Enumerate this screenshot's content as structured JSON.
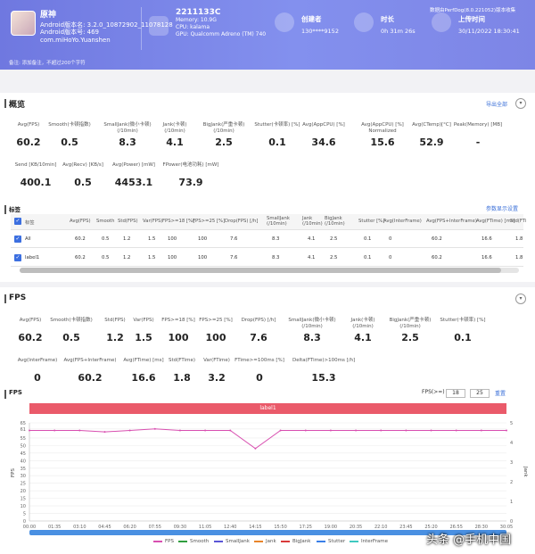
{
  "header": {
    "app_name": "原神",
    "android_version": "Android版本名: 3.2.0_10872902_11078128",
    "android_code": "Android版本号: 469",
    "package": "com.miHoYo.Yuanshen",
    "device_name": "2211133C",
    "memory": "Memory: 10.9G",
    "cpu": "CPU: kalama",
    "gpu": "GPU: Qualcomm Adreno (TM) 740",
    "creator_label": "创建者",
    "creator_value": "130****9152",
    "duration_label": "时长",
    "duration_value": "0h 31m 26s",
    "upload_label": "上传时间",
    "upload_value": "30/11/2022 18:30:41",
    "version_note": "数据由PerfDog(8.0.221052)版本收集",
    "notes": "备注: 添加备注，不超过200个字符"
  },
  "overview": {
    "title": "概览",
    "export": "导出全部",
    "metrics_row1": [
      {
        "label": "Avg(FPS)",
        "value": "60.2"
      },
      {
        "label": "Smooth(卡顿指数)",
        "value": "0.5"
      },
      {
        "label": "SmallJank(微小卡顿)\n(/10min)",
        "value": "8.3"
      },
      {
        "label": "Jank(卡顿)\n(/10min)",
        "value": "4.1"
      },
      {
        "label": "BigJank(严重卡顿)\n(/10min)",
        "value": "2.5"
      },
      {
        "label": "Stutter(卡顿率) [%]",
        "value": "0.1"
      },
      {
        "label": "Avg(AppCPU) [%]",
        "value": "34.6"
      },
      {
        "label": "Avg(AppCPU) [%]\nNormalized",
        "value": "15.6"
      },
      {
        "label": "Avg(CTemp)[°C]",
        "value": "52.9"
      },
      {
        "label": "Peak(Memory) [MB]",
        "value": "-"
      }
    ],
    "metrics_row2": [
      {
        "label": "Send [KB/10min]",
        "value": "400.1"
      },
      {
        "label": "Avg(Recv) [KB/s]",
        "value": "0.5"
      },
      {
        "label": "Avg(Power) [mW]",
        "value": "4453.1"
      },
      {
        "label": "FPower(电池功耗) [mW]",
        "value": "73.9"
      }
    ]
  },
  "labels_table": {
    "title": "标签",
    "settings": "参数显示设置",
    "headers": [
      "标签",
      "Avg(FPS)",
      "Smooth",
      "Std(FPS)",
      "Var(FPS)",
      "FPS>=18 [%]",
      "FPS>=25 [%]",
      "Drop(FPS) [/h]",
      "SmallJank\n(/10min)",
      "Jank\n(/10min)",
      "BigJank\n(/10min)",
      "Stutter [%]",
      "Avg(InterFrame)",
      "Avg(FPS+InterFrame)",
      "Avg(FTime) [ms]",
      "Std(FTi"
    ],
    "rows": [
      [
        "All",
        "60.2",
        "0.5",
        "1.2",
        "1.5",
        "100",
        "100",
        "7.6",
        "8.3",
        "4.1",
        "2.5",
        "0.1",
        "0",
        "60.2",
        "16.6",
        "1.8"
      ],
      [
        "label1",
        "60.2",
        "0.5",
        "1.2",
        "1.5",
        "100",
        "100",
        "7.6",
        "8.3",
        "4.1",
        "2.5",
        "0.1",
        "0",
        "60.2",
        "16.6",
        "1.8"
      ]
    ]
  },
  "fps_panel": {
    "title": "FPS",
    "metrics_row1": [
      {
        "label": "Avg(FPS)",
        "value": "60.2"
      },
      {
        "label": "Smooth(卡顿指数)",
        "value": "0.5"
      },
      {
        "label": "Std(FPS)",
        "value": "1.2"
      },
      {
        "label": "Var(FPS)",
        "value": "1.5"
      },
      {
        "label": "FPS>=18 [%]",
        "value": "100"
      },
      {
        "label": "FPS>=25 [%]",
        "value": "100"
      },
      {
        "label": "Drop(FPS) [/h]",
        "value": "7.6"
      },
      {
        "label": "SmallJank(微小卡顿)\n(/10min)",
        "value": "8.3"
      },
      {
        "label": "Jank(卡顿)\n(/10min)",
        "value": "4.1"
      },
      {
        "label": "BigJank(严重卡顿)\n(/10min)",
        "value": "2.5"
      },
      {
        "label": "Stutter(卡顿率) [%]",
        "value": "0.1"
      }
    ],
    "metrics_row2": [
      {
        "label": "Avg(InterFrame)",
        "value": "0"
      },
      {
        "label": "Avg(FPS+InterFrame)",
        "value": "60.2"
      },
      {
        "label": "Avg(FTime) [ms]",
        "value": "16.6"
      },
      {
        "label": "Std(FTime)",
        "value": "1.8"
      },
      {
        "label": "Var(FTime)",
        "value": "3.2"
      },
      {
        "label": "FTime>=100ms [%]",
        "value": "0"
      },
      {
        "label": "Delta(FTime)>100ms [/h]",
        "value": "15.3"
      }
    ],
    "chart_title": "FPS",
    "fps_ge_label": "FPS(>=)",
    "fps_threshold_1": "18",
    "fps_threshold_2": "25",
    "reset": "重置",
    "segment_label": "label1"
  },
  "chart_data": {
    "type": "line",
    "title": "FPS",
    "ylabel": "FPS",
    "y2label": "Jank",
    "ylim": [
      0,
      65
    ],
    "y2lim": [
      0,
      5
    ],
    "yticks": [
      0,
      5,
      10,
      15,
      20,
      25,
      30,
      35,
      40,
      45,
      50,
      55,
      61,
      65
    ],
    "y2ticks": [
      0,
      1,
      2,
      3,
      4,
      5
    ],
    "x": [
      "00:00",
      "01:35",
      "03:10",
      "04:45",
      "06:20",
      "07:55",
      "09:30",
      "11:05",
      "12:40",
      "14:15",
      "15:50",
      "17:25",
      "19:00",
      "20:35",
      "22:10",
      "23:45",
      "25:20",
      "26:55",
      "28:30",
      "30:05"
    ],
    "series": [
      {
        "name": "FPS",
        "color": "#d84fb0",
        "values": [
          60,
          60,
          60,
          59,
          60,
          61,
          60,
          60,
          60,
          48,
          60,
          60,
          60,
          60,
          60,
          60,
          60,
          60,
          60,
          60
        ]
      },
      {
        "name": "Smooth",
        "color": "#2f9e3e"
      },
      {
        "name": "SmallJank",
        "color": "#5a55d6"
      },
      {
        "name": "Jank",
        "color": "#e8842a"
      },
      {
        "name": "BigJank",
        "color": "#d93a3a"
      },
      {
        "name": "Stutter",
        "color": "#3a7fe8"
      },
      {
        "name": "InterFrame",
        "color": "#3fc9c0"
      }
    ],
    "grid": true,
    "legend": "bottom"
  },
  "watermark": "头条 @手机中国"
}
